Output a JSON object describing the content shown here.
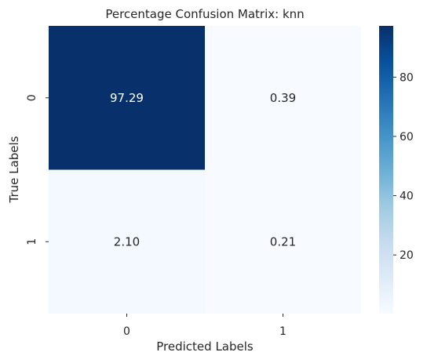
{
  "chart_data": {
    "type": "heatmap",
    "title": "Percentage Confusion Matrix: knn",
    "xlabel": "Predicted Labels",
    "ylabel": "True Labels",
    "x_categories": [
      "0",
      "1"
    ],
    "y_categories": [
      "0",
      "1"
    ],
    "values": [
      [
        97.29,
        0.39
      ],
      [
        2.1,
        0.21
      ]
    ],
    "cell_labels": [
      [
        "97.29",
        "0.39"
      ],
      [
        "2.10",
        "0.21"
      ]
    ],
    "colormap": "Blues",
    "colorbar": {
      "min": 0.21,
      "max": 97.29,
      "ticks": [
        20,
        40,
        60,
        80
      ],
      "tick_labels": [
        "20",
        "40",
        "60",
        "80"
      ]
    },
    "grid": false,
    "legend": "colorbar-right"
  }
}
